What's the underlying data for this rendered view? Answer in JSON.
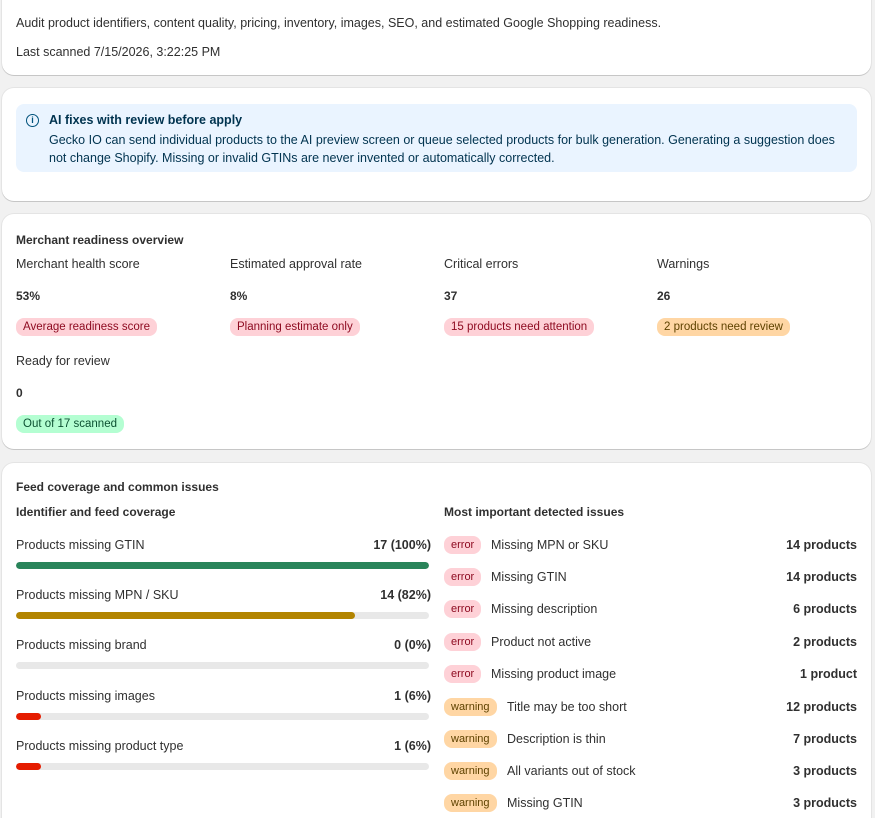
{
  "header": {
    "description": "Audit product identifiers, content quality, pricing, inventory, images, SEO, and estimated Google Shopping readiness.",
    "last_scanned": "Last scanned 7/15/2026, 3:22:25 PM"
  },
  "banner": {
    "icon": "info-icon",
    "title": "AI fixes with review before apply",
    "text": "Gecko IO can send individual products to the AI preview screen or queue selected products for bulk generation. Generating a suggestion does not change Shopify. Missing or invalid GTINs are never invented or automatically corrected."
  },
  "overview": {
    "title": "Merchant readiness overview",
    "metrics": [
      {
        "label": "Merchant health score",
        "value": "53%",
        "badge": "Average readiness score",
        "tone": "red"
      },
      {
        "label": "Estimated approval rate",
        "value": "8%",
        "badge": "Planning estimate only",
        "tone": "red"
      },
      {
        "label": "Critical errors",
        "value": "37",
        "badge": "15 products need attention",
        "tone": "red"
      },
      {
        "label": "Warnings",
        "value": "26",
        "badge": "2 products need review",
        "tone": "orange"
      },
      {
        "label": "Ready for review",
        "value": "0",
        "badge": "Out of 17 scanned",
        "tone": "green"
      }
    ]
  },
  "coverage": {
    "title": "Feed coverage and common issues",
    "identifier_title": "Identifier and feed coverage",
    "issues_title": "Most important detected issues",
    "rows": [
      {
        "label": "Products missing GTIN",
        "value": "17 (100%)",
        "percent": 100,
        "color": "#29845a"
      },
      {
        "label": "Products missing MPN / SKU",
        "value": "14 (82%)",
        "percent": 82,
        "color": "#b28400"
      },
      {
        "label": "Products missing brand",
        "value": "0 (0%)",
        "percent": 0,
        "color": "#29845a"
      },
      {
        "label": "Products missing images",
        "value": "1 (6%)",
        "percent": 6,
        "color": "#e51c00"
      },
      {
        "label": "Products missing product type",
        "value": "1 (6%)",
        "percent": 6,
        "color": "#e51c00"
      }
    ],
    "issues": [
      {
        "type": "error",
        "label": "Missing MPN or SKU",
        "count": "14 products"
      },
      {
        "type": "error",
        "label": "Missing GTIN",
        "count": "14 products"
      },
      {
        "type": "error",
        "label": "Missing description",
        "count": "6 products"
      },
      {
        "type": "error",
        "label": "Product not active",
        "count": "2 products"
      },
      {
        "type": "error",
        "label": "Missing product image",
        "count": "1 product"
      },
      {
        "type": "warning",
        "label": "Title may be too short",
        "count": "12 products"
      },
      {
        "type": "warning",
        "label": "Description is thin",
        "count": "7 products"
      },
      {
        "type": "warning",
        "label": "All variants out of stock",
        "count": "3 products"
      },
      {
        "type": "warning",
        "label": "Missing GTIN",
        "count": "3 products"
      }
    ]
  }
}
